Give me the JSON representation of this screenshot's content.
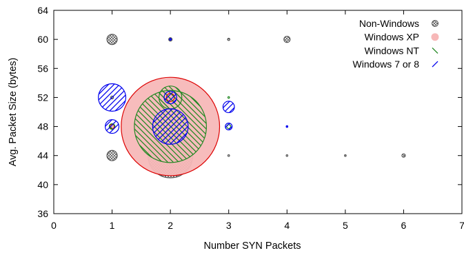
{
  "chart_data": {
    "type": "scatter",
    "variant": "bubble",
    "xlabel": "Number SYN Packets",
    "ylabel": "Avg. Packet Size (bytes)",
    "xlim": [
      0,
      7
    ],
    "ylim": [
      36,
      64
    ],
    "xticks": [
      0,
      1,
      2,
      3,
      4,
      5,
      6,
      7
    ],
    "yticks": [
      36,
      40,
      44,
      48,
      52,
      56,
      60,
      64
    ],
    "legend_position": "top-right",
    "grid": false,
    "series": [
      {
        "name": "Non-Windows",
        "color": "#555555",
        "fill_style": "crosshatch",
        "points": [
          {
            "x": 1,
            "y": 60,
            "size": 0.9
          },
          {
            "x": 1,
            "y": 52,
            "size": 0.25
          },
          {
            "x": 1,
            "y": 48,
            "size": 0.35
          },
          {
            "x": 1,
            "y": 44,
            "size": 0.9
          },
          {
            "x": 2,
            "y": 60,
            "size": 0.3
          },
          {
            "x": 2,
            "y": 44,
            "size": 3.9
          },
          {
            "x": 3,
            "y": 60,
            "size": 0.2
          },
          {
            "x": 3,
            "y": 44,
            "size": 0.15
          },
          {
            "x": 4,
            "y": 60,
            "size": 0.55
          },
          {
            "x": 4,
            "y": 44,
            "size": 0.12
          },
          {
            "x": 5,
            "y": 44,
            "size": 0.15
          },
          {
            "x": 6,
            "y": 44,
            "size": 0.3
          }
        ]
      },
      {
        "name": "Windows XP",
        "color": "#dd0000",
        "fill_color": "#f7b8b8",
        "fill_style": "solid",
        "points": [
          {
            "x": 1,
            "y": 48,
            "size": 0.4
          },
          {
            "x": 2,
            "y": 48,
            "size": 8.6
          },
          {
            "x": 2,
            "y": 52,
            "size": 0.7
          }
        ]
      },
      {
        "name": "Windows NT",
        "color": "#228822",
        "fill_style": "diagonal-back",
        "points": [
          {
            "x": 1,
            "y": 48,
            "size": 0.5
          },
          {
            "x": 2,
            "y": 52,
            "size": 2.0
          },
          {
            "x": 2,
            "y": 48,
            "size": 6.3
          },
          {
            "x": 3,
            "y": 52,
            "size": 0.1
          },
          {
            "x": 3,
            "y": 48,
            "size": 0.35
          }
        ]
      },
      {
        "name": "Windows 7 or 8",
        "color": "#0000ee",
        "fill_style": "diagonal-forward",
        "points": [
          {
            "x": 1,
            "y": 52,
            "size": 2.4
          },
          {
            "x": 1,
            "y": 48,
            "size": 1.2
          },
          {
            "x": 2,
            "y": 60,
            "size": 0.15
          },
          {
            "x": 2,
            "y": 52,
            "size": 1.1
          },
          {
            "x": 2,
            "y": 48,
            "size": 3.1
          },
          {
            "x": 3,
            "y": 50.7,
            "size": 1.0
          },
          {
            "x": 3,
            "y": 48,
            "size": 0.6
          },
          {
            "x": 4,
            "y": 48,
            "size": 0.08
          }
        ]
      }
    ]
  }
}
